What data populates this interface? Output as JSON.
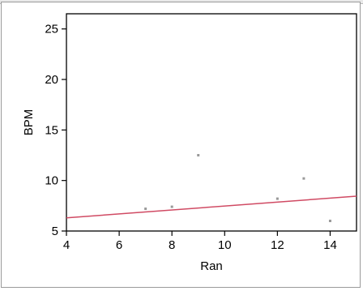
{
  "chart_data": {
    "type": "scatter",
    "title": "",
    "xlabel": "Ran",
    "ylabel": "BPM",
    "xlim": [
      4,
      15
    ],
    "ylim": [
      5,
      26.5
    ],
    "x_ticks": [
      4,
      6,
      8,
      10,
      12,
      14
    ],
    "y_ticks": [
      5,
      10,
      15,
      20,
      25
    ],
    "grid": false,
    "legend": "none",
    "series": [
      {
        "type": "scatter",
        "color": "#999999",
        "points": [
          {
            "x": 7,
            "y": 7.2
          },
          {
            "x": 8,
            "y": 7.4
          },
          {
            "x": 9,
            "y": 12.5
          },
          {
            "x": 12,
            "y": 8.2
          },
          {
            "x": 13,
            "y": 10.2
          },
          {
            "x": 14,
            "y": 6.0
          }
        ]
      },
      {
        "type": "line",
        "color": "#d04a63",
        "points": [
          {
            "x": 4,
            "y": 6.3
          },
          {
            "x": 15,
            "y": 8.45
          }
        ]
      }
    ]
  }
}
